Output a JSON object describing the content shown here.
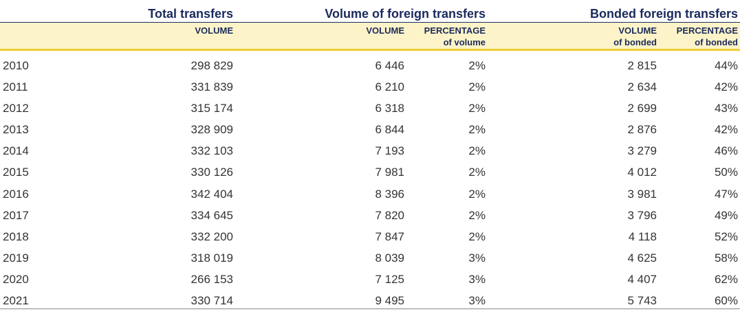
{
  "headers": {
    "total_transfers": "Total transfers",
    "volume_foreign": "Volume of foreign transfers",
    "bonded_foreign": "Bonded foreign transfers"
  },
  "subheaders": {
    "total_volume": "VOLUME",
    "foreign_volume": "VOLUME",
    "foreign_pct_line1": "PERCENTAGE",
    "foreign_pct_line2": "of volume",
    "bonded_volume_line1": "VOLUME",
    "bonded_volume_line2": "of bonded",
    "bonded_pct_line1": "PERCENTAGE",
    "bonded_pct_line2": "of bonded"
  },
  "rows": [
    {
      "year": "2010",
      "total": "298 829",
      "foreign": "6 446",
      "foreign_pct": "2%",
      "bonded": "2 815",
      "bonded_pct": "44%"
    },
    {
      "year": "2011",
      "total": "331 839",
      "foreign": "6 210",
      "foreign_pct": "2%",
      "bonded": "2 634",
      "bonded_pct": "42%"
    },
    {
      "year": "2012",
      "total": "315 174",
      "foreign": "6 318",
      "foreign_pct": "2%",
      "bonded": "2 699",
      "bonded_pct": "43%"
    },
    {
      "year": "2013",
      "total": "328 909",
      "foreign": "6 844",
      "foreign_pct": "2%",
      "bonded": "2 876",
      "bonded_pct": "42%"
    },
    {
      "year": "2014",
      "total": "332 103",
      "foreign": "7 193",
      "foreign_pct": "2%",
      "bonded": "3 279",
      "bonded_pct": "46%"
    },
    {
      "year": "2015",
      "total": "330 126",
      "foreign": "7 981",
      "foreign_pct": "2%",
      "bonded": "4 012",
      "bonded_pct": "50%"
    },
    {
      "year": "2016",
      "total": "342 404",
      "foreign": "8 396",
      "foreign_pct": "2%",
      "bonded": "3 981",
      "bonded_pct": "47%"
    },
    {
      "year": "2017",
      "total": "334 645",
      "foreign": "7 820",
      "foreign_pct": "2%",
      "bonded": "3 796",
      "bonded_pct": "49%"
    },
    {
      "year": "2018",
      "total": "332 200",
      "foreign": "7 847",
      "foreign_pct": "2%",
      "bonded": "4 118",
      "bonded_pct": "52%"
    },
    {
      "year": "2019",
      "total": "318 019",
      "foreign": "8 039",
      "foreign_pct": "3%",
      "bonded": "4 625",
      "bonded_pct": "58%"
    },
    {
      "year": "2020",
      "total": "266 153",
      "foreign": "7 125",
      "foreign_pct": "3%",
      "bonded": "4 407",
      "bonded_pct": "62%"
    },
    {
      "year": "2021",
      "total": "330 714",
      "foreign": "9 495",
      "foreign_pct": "3%",
      "bonded": "5 743",
      "bonded_pct": "60%"
    }
  ],
  "colors": {
    "header_text": "#1b2a5c",
    "subheader_bg": "#fcf4c8",
    "accent_rule": "#f0cd35",
    "body_text": "#333333"
  }
}
